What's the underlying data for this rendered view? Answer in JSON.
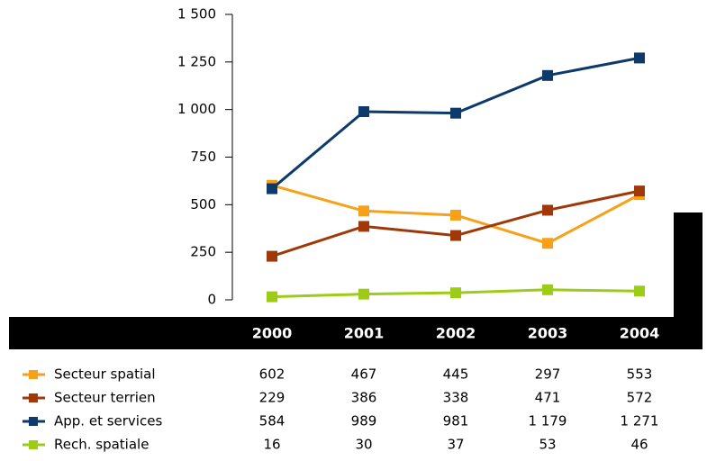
{
  "chart_data": {
    "type": "line",
    "categories": [
      "2000",
      "2001",
      "2002",
      "2003",
      "2004"
    ],
    "series": [
      {
        "name": "Secteur spatial",
        "color": "#f7a11a",
        "values": [
          602,
          467,
          445,
          297,
          553
        ]
      },
      {
        "name": "Secteur terrien",
        "color": "#a0390a",
        "values": [
          229,
          386,
          338,
          471,
          572
        ]
      },
      {
        "name": "App. et services",
        "color": "#0e3a6b",
        "values": [
          584,
          989,
          981,
          1179,
          1271
        ],
        "value_labels": [
          "584",
          "989",
          "981",
          "1 179",
          "1 271"
        ]
      },
      {
        "name": "Rech. spatiale",
        "color": "#9ccc18",
        "values": [
          16,
          30,
          37,
          53,
          46
        ]
      }
    ],
    "ylim": [
      0,
      1500
    ],
    "yticks": [
      0,
      250,
      500,
      750,
      {
        "value": 1000,
        "label": "1 000"
      },
      {
        "value": 1250,
        "label": "1 250"
      },
      {
        "value": 1500,
        "label": "1 500"
      }
    ]
  }
}
